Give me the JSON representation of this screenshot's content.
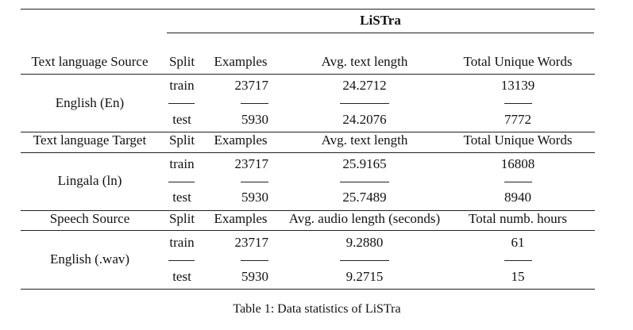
{
  "header": {
    "title": "LiSTra"
  },
  "blocks": [
    {
      "headers": [
        "Text language Source",
        "Split",
        "Examples",
        "Avg. text length",
        "Total Unique Words"
      ],
      "language": "English (En)",
      "rows": [
        {
          "split": "train",
          "examples": "23717",
          "avg": "24.2712",
          "total": "13139"
        },
        {
          "split": "test",
          "examples": "5930",
          "avg": "24.2076",
          "total": "7772"
        }
      ]
    },
    {
      "headers": [
        "Text language Target",
        "Split",
        "Examples",
        "Avg. text length",
        "Total Unique Words"
      ],
      "language": "Lingala (ln)",
      "rows": [
        {
          "split": "train",
          "examples": "23717",
          "avg": "25.9165",
          "total": "16808"
        },
        {
          "split": "test",
          "examples": "5930",
          "avg": "25.7489",
          "total": "8940"
        }
      ]
    },
    {
      "headers": [
        "Speech Source",
        "Split",
        "Examples",
        "Avg. audio length (seconds)",
        "Total numb. hours"
      ],
      "language": "English (.wav)",
      "rows": [
        {
          "split": "train",
          "examples": "23717",
          "avg": "9.2880",
          "total": "61"
        },
        {
          "split": "test",
          "examples": "5930",
          "avg": "9.2715",
          "total": "15"
        }
      ]
    }
  ],
  "caption": "Table 1: Data statistics of LiSTra"
}
